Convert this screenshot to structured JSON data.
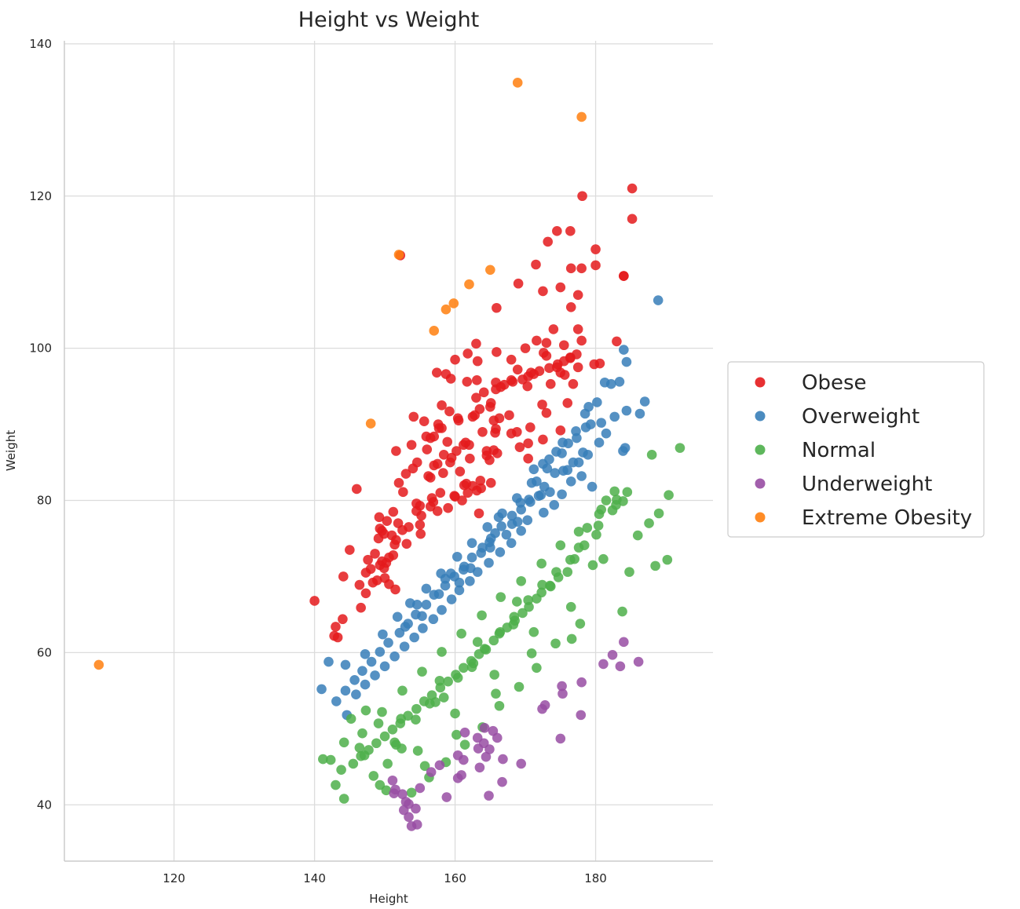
{
  "chart_data": {
    "type": "scatter",
    "title": "Height vs Weight",
    "xlabel": "Height",
    "ylabel": "Weight",
    "xlim": [
      104.4,
      196.7
    ],
    "ylim": [
      32.6,
      140.4
    ],
    "xticks": [
      120,
      140,
      160,
      180
    ],
    "yticks": [
      40,
      60,
      80,
      100,
      120,
      140
    ],
    "grid": true,
    "legend_position": "right",
    "series": [
      {
        "name": "Obese",
        "color": "#e41a1c",
        "x": [
          185.2,
          178.1,
          185.2,
          174.5,
          176.4,
          173.2,
          171.5,
          180.0,
          176.5,
          169.0,
          178.0,
          180.0,
          172.5,
          175.0,
          184.0,
          184.0,
          177.5,
          176.5,
          183.0,
          177.5,
          174.0,
          178.0,
          173.0,
          175.5,
          165.9,
          171.6,
          163.0,
          170.0,
          165.9,
          173.0,
          172.6,
          176.4,
          168.0,
          161.8,
          163.2,
          174.5,
          160.0,
          179.8,
          180.6,
          177.5,
          168.9,
          175.0,
          157.4,
          158.7,
          163.1,
          175.6,
          159.4,
          170.8,
          168.0,
          165.8,
          176.8,
          161.7,
          170.3,
          173.6,
          152.2,
          158.1,
          153.8,
          155.6,
          157.6,
          160.4,
          154.1,
          157.7,
          165.0,
          172.4,
          173.0,
          159.2,
          167.7,
          162.5,
          165.5,
          166.3,
          168.0,
          168.8,
          165.8,
          163.9,
          165.7,
          170.7,
          176.0,
          156.5,
          155.9,
          161.5,
          175.0,
          172.5,
          169.2,
          158.9,
          170.4,
          161.2,
          156.0,
          164.5,
          158.4,
          165.5,
          151.6,
          166.0,
          164.5,
          164.9,
          154.6,
          162.1,
          170.4,
          159.3,
          157.0,
          154.0,
          158.3,
          160.7,
          153.0,
          156.5,
          163.6,
          161.6,
          161.3,
          165.1,
          162.5,
          163.7,
          163.1,
          161.8,
          160.0,
          159.9,
          156.7,
          161.0,
          152.6,
          156.9,
          155.0,
          159.0,
          157.5,
          163.4,
          152.0,
          151.2,
          155.2,
          149.2,
          150.3,
          151.9,
          153.4,
          149.6,
          146.0,
          155.0,
          149.3,
          152.5,
          149.9,
          151.0,
          149.1,
          151.6,
          151.4,
          145.0,
          148.6,
          150.6,
          147.6,
          149.6,
          150.2,
          149.3,
          148.0,
          147.3,
          144.1,
          148.9,
          150.6,
          140.0,
          142.8,
          144.0,
          143.0,
          146.6,
          143.3,
          146.4,
          147.3,
          148.3,
          149.9,
          150.0,
          151.5,
          151.2,
          155.1,
          153.1,
          154.5,
          154.5,
          156.5,
          157.9,
          156.2,
          157.5,
          159.5,
          160.2,
          162.0,
          157.0,
          158.1,
          160.5,
          162.8,
          163.5,
          165.1,
          163.0,
          164.1,
          165.8,
          166.5,
          167.0,
          168.2,
          169.6,
          170.4,
          171.2,
          172.0,
          173.4,
          174.6,
          175.5,
          176.4,
          177.3
        ],
        "y": [
          121.0,
          120.0,
          117.0,
          115.4,
          115.4,
          114.0,
          111.0,
          113.0,
          110.5,
          108.5,
          110.5,
          110.9,
          107.5,
          108.0,
          109.5,
          109.5,
          107.0,
          105.4,
          100.9,
          102.5,
          102.5,
          101.0,
          100.7,
          100.4,
          105.3,
          101.0,
          100.6,
          100.0,
          99.5,
          99.0,
          99.4,
          98.8,
          98.5,
          99.3,
          98.3,
          97.5,
          98.5,
          97.9,
          98.0,
          97.5,
          97.2,
          96.8,
          96.8,
          96.6,
          95.8,
          96.5,
          96.0,
          96.8,
          95.8,
          95.5,
          95.3,
          95.6,
          95.0,
          95.3,
          112.2,
          92.5,
          87.3,
          90.4,
          90.0,
          90.8,
          91.0,
          89.5,
          92.3,
          92.6,
          91.5,
          91.7,
          91.2,
          91.0,
          90.5,
          90.8,
          88.8,
          89.0,
          89.4,
          89.0,
          88.9,
          89.6,
          92.8,
          88.2,
          88.4,
          87.6,
          89.2,
          88.0,
          87.0,
          87.7,
          87.5,
          87.3,
          86.7,
          86.5,
          86.0,
          86.6,
          86.5,
          86.2,
          85.9,
          85.3,
          85.0,
          85.5,
          85.5,
          85.0,
          84.6,
          84.2,
          83.6,
          83.8,
          83.5,
          83.0,
          82.6,
          82.2,
          82.0,
          82.3,
          81.9,
          81.6,
          81.3,
          81.0,
          80.5,
          80.6,
          80.3,
          80.0,
          81.1,
          79.8,
          79.3,
          79.0,
          78.6,
          78.3,
          82.3,
          78.5,
          78.0,
          77.8,
          77.3,
          77.0,
          76.5,
          76.0,
          81.5,
          76.8,
          76.3,
          76.1,
          75.6,
          75.4,
          75.0,
          74.8,
          74.2,
          73.5,
          73.0,
          72.5,
          72.2,
          72.0,
          71.8,
          71.5,
          71.0,
          70.5,
          70.0,
          69.5,
          69.0,
          66.8,
          62.2,
          64.4,
          63.4,
          65.9,
          62.0,
          68.9,
          67.8,
          69.2,
          71.1,
          69.8,
          68.3,
          72.8,
          75.6,
          74.3,
          78.6,
          79.6,
          79.2,
          81.0,
          83.2,
          84.8,
          85.6,
          86.5,
          87.3,
          88.4,
          89.5,
          90.5,
          91.2,
          92.0,
          92.8,
          93.5,
          94.2,
          94.6,
          94.9,
          95.2,
          95.6,
          95.9,
          96.3,
          96.6,
          97.0,
          97.4,
          97.9,
          98.3,
          98.7,
          99.2
        ]
      },
      {
        "name": "Overweight",
        "color": "#377eb8",
        "x": [
          188.9,
          184.0,
          187.0,
          184.4,
          186.3,
          184.4,
          181.3,
          182.2,
          183.4,
          180.2,
          179.0,
          182.7,
          184.2,
          180.8,
          178.5,
          181.5,
          183.9,
          178.6,
          180.5,
          177.2,
          176.1,
          178.9,
          175.3,
          174.4,
          177.6,
          173.4,
          176.0,
          172.5,
          174.2,
          171.2,
          178.0,
          176.5,
          179.5,
          172.7,
          175.2,
          171.9,
          170.7,
          174.1,
          169.4,
          172.6,
          168.1,
          170.3,
          166.6,
          169.4,
          167.3,
          165.1,
          168.0,
          163.9,
          166.4,
          162.4,
          164.8,
          161.3,
          163.2,
          159.9,
          162.1,
          158.6,
          160.6,
          157.0,
          159.5,
          155.9,
          158.1,
          154.4,
          156.9,
          153.3,
          155.4,
          152.1,
          154.2,
          150.5,
          152.8,
          149.3,
          151.4,
          148.1,
          150.0,
          146.8,
          148.6,
          145.7,
          147.2,
          144.4,
          145.9,
          143.1,
          144.6,
          142.0,
          141.0,
          144.4,
          147.2,
          149.7,
          151.8,
          153.6,
          155.9,
          158.0,
          160.3,
          162.4,
          164.6,
          166.7,
          168.8,
          170.9,
          173.1,
          175.2,
          177.3,
          179.3,
          165.0,
          170.5,
          160.6,
          175.4,
          152.9,
          163.7,
          157.7,
          168.1,
          172.2,
          178.2,
          158.6,
          164.9,
          168.9,
          162.2,
          155.3,
          173.5,
          169.3,
          165.7,
          159.4,
          176.8,
          166.2,
          154.6,
          161.2,
          171.6
        ],
        "y": [
          106.3,
          99.8,
          93.0,
          98.2,
          91.4,
          91.8,
          95.5,
          95.3,
          95.6,
          92.9,
          92.3,
          91.0,
          86.9,
          90.2,
          91.4,
          88.8,
          86.5,
          89.6,
          87.6,
          89.1,
          87.5,
          86.0,
          87.6,
          86.4,
          85.0,
          85.4,
          84.0,
          84.8,
          83.6,
          84.1,
          83.2,
          82.5,
          81.8,
          81.8,
          80.8,
          80.6,
          79.8,
          79.4,
          78.8,
          78.4,
          78.0,
          77.4,
          76.6,
          76.0,
          75.5,
          75.0,
          74.4,
          73.8,
          73.2,
          72.5,
          71.8,
          71.3,
          70.6,
          70.0,
          69.4,
          68.8,
          68.2,
          67.6,
          67.0,
          66.3,
          65.6,
          65.0,
          64.4,
          63.8,
          63.2,
          62.6,
          62.0,
          61.3,
          60.8,
          60.1,
          59.5,
          58.8,
          58.2,
          57.6,
          57.0,
          56.4,
          55.8,
          55.0,
          54.5,
          53.6,
          51.8,
          58.8,
          55.2,
          58.4,
          59.8,
          62.4,
          64.7,
          66.5,
          68.4,
          70.4,
          72.6,
          74.4,
          76.5,
          78.3,
          80.3,
          82.3,
          84.2,
          86.2,
          88.2,
          90.0,
          73.8,
          80.1,
          69.2,
          83.9,
          63.4,
          73.1,
          67.7,
          76.9,
          80.7,
          86.3,
          69.7,
          74.5,
          77.2,
          71.1,
          64.8,
          81.1,
          79.7,
          75.7,
          70.4,
          85.0,
          77.8,
          66.3,
          70.9,
          82.5
        ]
      },
      {
        "name": "Normal",
        "color": "#4daf4a",
        "x": [
          192.0,
          188.0,
          190.4,
          189.0,
          187.6,
          190.2,
          188.5,
          186.0,
          184.8,
          183.8,
          184.5,
          182.7,
          182.9,
          181.5,
          180.8,
          180.1,
          179.6,
          178.8,
          177.6,
          177.0,
          176.0,
          174.7,
          173.5,
          172.3,
          171.6,
          170.5,
          169.6,
          168.5,
          167.4,
          166.3,
          165.5,
          164.2,
          163.4,
          162.3,
          161.2,
          160.1,
          159.0,
          157.9,
          156.7,
          155.6,
          154.5,
          153.3,
          152.2,
          151.1,
          150.0,
          148.8,
          147.7,
          146.6,
          145.5,
          144.2,
          143.0,
          141.2,
          142.3,
          144.2,
          146.4,
          148.4,
          150.4,
          152.4,
          154.4,
          156.4,
          158.4,
          160.4,
          162.4,
          164.4,
          166.4,
          168.4,
          170.4,
          172.4,
          174.4,
          176.4,
          178.4,
          180.4,
          182.4,
          183.9,
          181.1,
          177.8,
          176.5,
          174.3,
          171.6,
          169.1,
          166.3,
          163.9,
          161.4,
          158.7,
          156.3,
          153.8,
          151.6,
          149.1,
          147.3,
          145.2,
          143.8,
          146.8,
          149.6,
          152.5,
          155.3,
          158.1,
          160.9,
          163.8,
          166.5,
          169.4,
          172.3,
          175.0,
          177.6,
          180.5,
          183.0,
          173.6,
          168.3,
          162.6,
          157.2,
          151.4,
          171.2,
          165.6,
          160.0,
          154.7,
          149.3,
          176.6,
          170.9,
          165.8,
          160.2,
          155.7,
          150.2,
          168.8,
          163.2,
          157.8,
          152.3,
          147.1
        ],
        "y": [
          86.9,
          86.0,
          80.7,
          78.3,
          77.0,
          72.2,
          71.4,
          75.4,
          70.6,
          65.4,
          81.1,
          81.2,
          79.4,
          80.0,
          78.8,
          75.5,
          71.5,
          76.4,
          73.8,
          72.3,
          70.6,
          69.9,
          68.8,
          67.9,
          67.1,
          66.0,
          65.2,
          64.2,
          63.3,
          62.5,
          61.6,
          60.5,
          59.8,
          58.9,
          58.0,
          57.1,
          56.2,
          55.4,
          54.4,
          53.6,
          52.6,
          51.7,
          50.7,
          49.9,
          49.0,
          48.1,
          47.2,
          46.4,
          45.4,
          40.8,
          42.6,
          46.0,
          45.9,
          48.2,
          47.5,
          43.8,
          45.4,
          47.4,
          51.2,
          53.3,
          54.1,
          56.7,
          58.1,
          60.4,
          62.7,
          64.7,
          66.9,
          68.9,
          70.6,
          72.2,
          74.1,
          76.7,
          78.7,
          79.9,
          72.3,
          63.8,
          66.0,
          61.2,
          58.0,
          55.5,
          53.0,
          50.2,
          47.9,
          45.6,
          43.6,
          41.6,
          47.9,
          50.7,
          52.4,
          51.3,
          44.6,
          49.4,
          52.2,
          55.0,
          57.5,
          60.1,
          62.5,
          64.9,
          67.3,
          69.4,
          71.7,
          74.1,
          75.9,
          78.2,
          80.1,
          68.7,
          63.7,
          58.6,
          53.5,
          48.2,
          62.7,
          57.1,
          52.0,
          47.1,
          42.6,
          61.8,
          59.9,
          54.6,
          49.2,
          45.1,
          41.9,
          66.7,
          61.4,
          56.3,
          51.3,
          46.5
        ]
      },
      {
        "name": "Underweight",
        "color": "#984ea3",
        "x": [
          184.0,
          186.1,
          183.5,
          181.1,
          182.4,
          178.0,
          177.9,
          175.2,
          175.3,
          175.0,
          172.8,
          172.4,
          169.4,
          166.8,
          164.9,
          164.2,
          165.4,
          166.0,
          163.3,
          164.4,
          164.1,
          163.2,
          161.2,
          160.4,
          160.9,
          158.8,
          160.4,
          157.8,
          156.6,
          155.0,
          154.4,
          153.8,
          154.6,
          153.4,
          153.0,
          152.5,
          151.5,
          151.1,
          151.3,
          153.4,
          152.7,
          163.5,
          164.8,
          161.4,
          166.7
        ],
        "y": [
          61.4,
          58.8,
          58.2,
          58.5,
          59.7,
          56.1,
          51.8,
          55.6,
          54.6,
          48.7,
          53.1,
          52.6,
          45.4,
          46.0,
          47.3,
          50.1,
          49.7,
          48.8,
          47.4,
          46.3,
          48.1,
          48.8,
          45.9,
          43.5,
          43.9,
          41.0,
          46.5,
          45.2,
          44.3,
          42.2,
          39.5,
          37.2,
          37.4,
          38.4,
          40.4,
          41.4,
          42.0,
          43.2,
          41.5,
          40.1,
          39.3,
          44.9,
          41.2,
          49.5,
          43.0
        ]
      },
      {
        "name": "Extreme Obesity",
        "color": "#ff7f0e",
        "x": [
          109.3,
          148.0,
          152.0,
          157.0,
          158.7,
          159.8,
          162.0,
          165.0,
          168.9,
          178.0
        ],
        "y": [
          58.4,
          90.1,
          112.3,
          102.3,
          105.1,
          105.9,
          108.4,
          110.3,
          134.9,
          130.4
        ]
      }
    ]
  }
}
